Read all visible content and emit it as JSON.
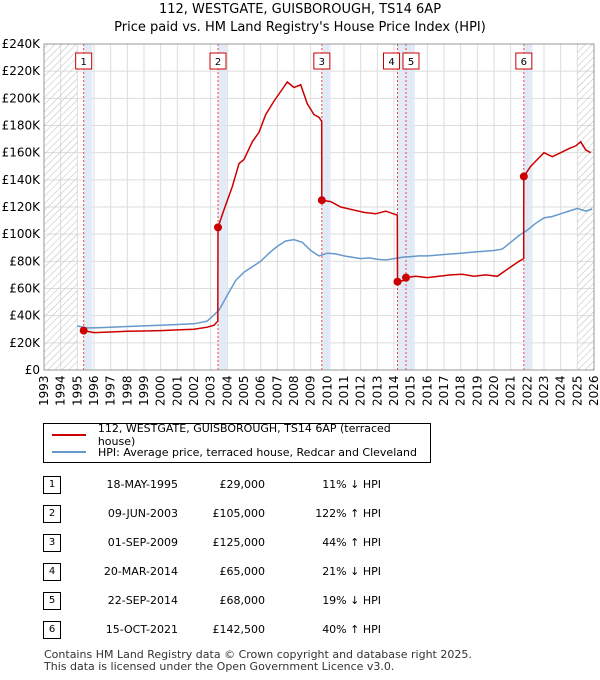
{
  "title_line1": "112, WESTGATE, GUISBOROUGH, TS14 6AP",
  "title_line2": "Price paid vs. HM Land Registry's House Price Index (HPI)",
  "colors": {
    "red": "#cc0000",
    "blue": "#6699cc",
    "grid": "#dddddd",
    "band": "#dde8f4",
    "marker_box": "#cc0000"
  },
  "chart_data": {
    "type": "line",
    "xlim": [
      1993,
      2026
    ],
    "ylim": [
      0,
      240000
    ],
    "x_ticks": [
      "1993",
      "1994",
      "1995",
      "1996",
      "1997",
      "1998",
      "1999",
      "2000",
      "2001",
      "2002",
      "2003",
      "2004",
      "2005",
      "2006",
      "2007",
      "2008",
      "2009",
      "2010",
      "2011",
      "2012",
      "2013",
      "2014",
      "2015",
      "2016",
      "2017",
      "2018",
      "2019",
      "2020",
      "2021",
      "2022",
      "2023",
      "2024",
      "2025",
      "2026"
    ],
    "y_ticks": [
      {
        "value": 0,
        "label": "£0"
      },
      {
        "value": 20000,
        "label": "£20K"
      },
      {
        "value": 40000,
        "label": "£40K"
      },
      {
        "value": 60000,
        "label": "£60K"
      },
      {
        "value": 80000,
        "label": "£80K"
      },
      {
        "value": 100000,
        "label": "£100K"
      },
      {
        "value": 120000,
        "label": "£120K"
      },
      {
        "value": 140000,
        "label": "£140K"
      },
      {
        "value": 160000,
        "label": "£160K"
      },
      {
        "value": 180000,
        "label": "£180K"
      },
      {
        "value": 200000,
        "label": "£200K"
      },
      {
        "value": 220000,
        "label": "£220K"
      },
      {
        "value": 240000,
        "label": "£240K"
      }
    ],
    "hatch_before": 1995.0,
    "hatch_after": 2025.0,
    "series": [
      {
        "name": "112, WESTGATE, GUISBOROUGH, TS14 6AP (terraced house)",
        "color": "#cc0000",
        "points": [
          [
            1995.38,
            29000
          ],
          [
            1996.0,
            27500
          ],
          [
            1997.0,
            28000
          ],
          [
            1998.0,
            28500
          ],
          [
            1999.0,
            28700
          ],
          [
            2000.0,
            29000
          ],
          [
            2001.0,
            29500
          ],
          [
            2002.0,
            30000
          ],
          [
            2002.8,
            31500
          ],
          [
            2003.2,
            33000
          ],
          [
            2003.43,
            36000
          ],
          [
            2003.44,
            105000
          ],
          [
            2003.8,
            118000
          ],
          [
            2004.3,
            135000
          ],
          [
            2004.7,
            152000
          ],
          [
            2005.0,
            155000
          ],
          [
            2005.5,
            168000
          ],
          [
            2005.9,
            175000
          ],
          [
            2006.3,
            188000
          ],
          [
            2006.8,
            198000
          ],
          [
            2007.2,
            205000
          ],
          [
            2007.6,
            212000
          ],
          [
            2008.0,
            208000
          ],
          [
            2008.4,
            210000
          ],
          [
            2008.8,
            196000
          ],
          [
            2009.2,
            188000
          ],
          [
            2009.5,
            186000
          ],
          [
            2009.66,
            183000
          ],
          [
            2009.67,
            125000
          ],
          [
            2010.2,
            124000
          ],
          [
            2010.8,
            120000
          ],
          [
            2011.5,
            118000
          ],
          [
            2012.2,
            116000
          ],
          [
            2012.9,
            115000
          ],
          [
            2013.5,
            117000
          ],
          [
            2014.2,
            114000
          ],
          [
            2014.21,
            65000
          ],
          [
            2014.6,
            66000
          ],
          [
            2014.72,
            68000
          ],
          [
            2015.3,
            69000
          ],
          [
            2016.0,
            68000
          ],
          [
            2016.7,
            69000
          ],
          [
            2017.4,
            70000
          ],
          [
            2018.1,
            70500
          ],
          [
            2018.8,
            69000
          ],
          [
            2019.5,
            70000
          ],
          [
            2020.2,
            69000
          ],
          [
            2020.9,
            75000
          ],
          [
            2021.5,
            80000
          ],
          [
            2021.78,
            82000
          ],
          [
            2021.79,
            142500
          ],
          [
            2022.2,
            150000
          ],
          [
            2022.6,
            155000
          ],
          [
            2023.0,
            160000
          ],
          [
            2023.5,
            157000
          ],
          [
            2024.0,
            160000
          ],
          [
            2024.5,
            163000
          ],
          [
            2024.9,
            165000
          ],
          [
            2025.2,
            168000
          ],
          [
            2025.5,
            162000
          ],
          [
            2025.8,
            160000
          ]
        ]
      },
      {
        "name": "HPI: Average price, terraced house, Redcar and Cleveland",
        "color": "#6699cc",
        "points": [
          [
            1995.0,
            32500
          ],
          [
            1995.5,
            31000
          ],
          [
            1996.0,
            31000
          ],
          [
            1997.0,
            31500
          ],
          [
            1998.0,
            32000
          ],
          [
            1999.0,
            32500
          ],
          [
            2000.0,
            33000
          ],
          [
            2001.0,
            33500
          ],
          [
            2002.0,
            34000
          ],
          [
            2002.8,
            36000
          ],
          [
            2003.5,
            44000
          ],
          [
            2004.0,
            55000
          ],
          [
            2004.5,
            66000
          ],
          [
            2005.0,
            72000
          ],
          [
            2005.5,
            76000
          ],
          [
            2006.0,
            80000
          ],
          [
            2006.5,
            86000
          ],
          [
            2007.0,
            91000
          ],
          [
            2007.5,
            95000
          ],
          [
            2008.0,
            96000
          ],
          [
            2008.5,
            94000
          ],
          [
            2009.0,
            88000
          ],
          [
            2009.5,
            84000
          ],
          [
            2010.0,
            86000
          ],
          [
            2010.5,
            85500
          ],
          [
            2011.0,
            84000
          ],
          [
            2011.5,
            83000
          ],
          [
            2012.0,
            82000
          ],
          [
            2012.5,
            82500
          ],
          [
            2013.0,
            81500
          ],
          [
            2013.5,
            81000
          ],
          [
            2014.0,
            82000
          ],
          [
            2014.5,
            83000
          ],
          [
            2015.0,
            83500
          ],
          [
            2015.5,
            84000
          ],
          [
            2016.0,
            84000
          ],
          [
            2016.5,
            84500
          ],
          [
            2017.0,
            85000
          ],
          [
            2017.5,
            85500
          ],
          [
            2018.0,
            86000
          ],
          [
            2018.5,
            86500
          ],
          [
            2019.0,
            87000
          ],
          [
            2019.5,
            87500
          ],
          [
            2020.0,
            88000
          ],
          [
            2020.5,
            89000
          ],
          [
            2021.0,
            94000
          ],
          [
            2021.5,
            99000
          ],
          [
            2022.0,
            103000
          ],
          [
            2022.5,
            108000
          ],
          [
            2023.0,
            112000
          ],
          [
            2023.5,
            113000
          ],
          [
            2024.0,
            115000
          ],
          [
            2024.5,
            117000
          ],
          [
            2025.0,
            119000
          ],
          [
            2025.5,
            117000
          ],
          [
            2025.9,
            118500
          ]
        ]
      }
    ],
    "sales": [
      {
        "id": "1",
        "x": 1995.38,
        "y": 29000
      },
      {
        "id": "2",
        "x": 2003.44,
        "y": 105000
      },
      {
        "id": "3",
        "x": 2009.67,
        "y": 125000
      },
      {
        "id": "4",
        "x": 2014.21,
        "y": 65000
      },
      {
        "id": "5",
        "x": 2014.72,
        "y": 68000
      },
      {
        "id": "6",
        "x": 2021.79,
        "y": 142500
      }
    ],
    "bands": [
      [
        1995.38,
        1995.9
      ],
      [
        2003.44,
        2003.96
      ],
      [
        2009.67,
        2010.19
      ],
      [
        2014.21,
        2015.25
      ],
      [
        2021.79,
        2022.31
      ]
    ]
  },
  "legend": {
    "red_label": "112, WESTGATE, GUISBOROUGH, TS14 6AP (terraced house)",
    "blue_label": "HPI: Average price, terraced house, Redcar and Cleveland"
  },
  "table": [
    {
      "num": "1",
      "date": "18-MAY-1995",
      "price": "£29,000",
      "hpi": "11% ↓ HPI"
    },
    {
      "num": "2",
      "date": "09-JUN-2003",
      "price": "£105,000",
      "hpi": "122% ↑ HPI"
    },
    {
      "num": "3",
      "date": "01-SEP-2009",
      "price": "£125,000",
      "hpi": "44% ↑ HPI"
    },
    {
      "num": "4",
      "date": "20-MAR-2014",
      "price": "£65,000",
      "hpi": "21% ↓ HPI"
    },
    {
      "num": "5",
      "date": "22-SEP-2014",
      "price": "£68,000",
      "hpi": "19% ↓ HPI"
    },
    {
      "num": "6",
      "date": "15-OCT-2021",
      "price": "£142,500",
      "hpi": "40% ↑ HPI"
    }
  ],
  "footer_line1": "Contains HM Land Registry data © Crown copyright and database right 2025.",
  "footer_line2": "This data is licensed under the Open Government Licence v3.0."
}
